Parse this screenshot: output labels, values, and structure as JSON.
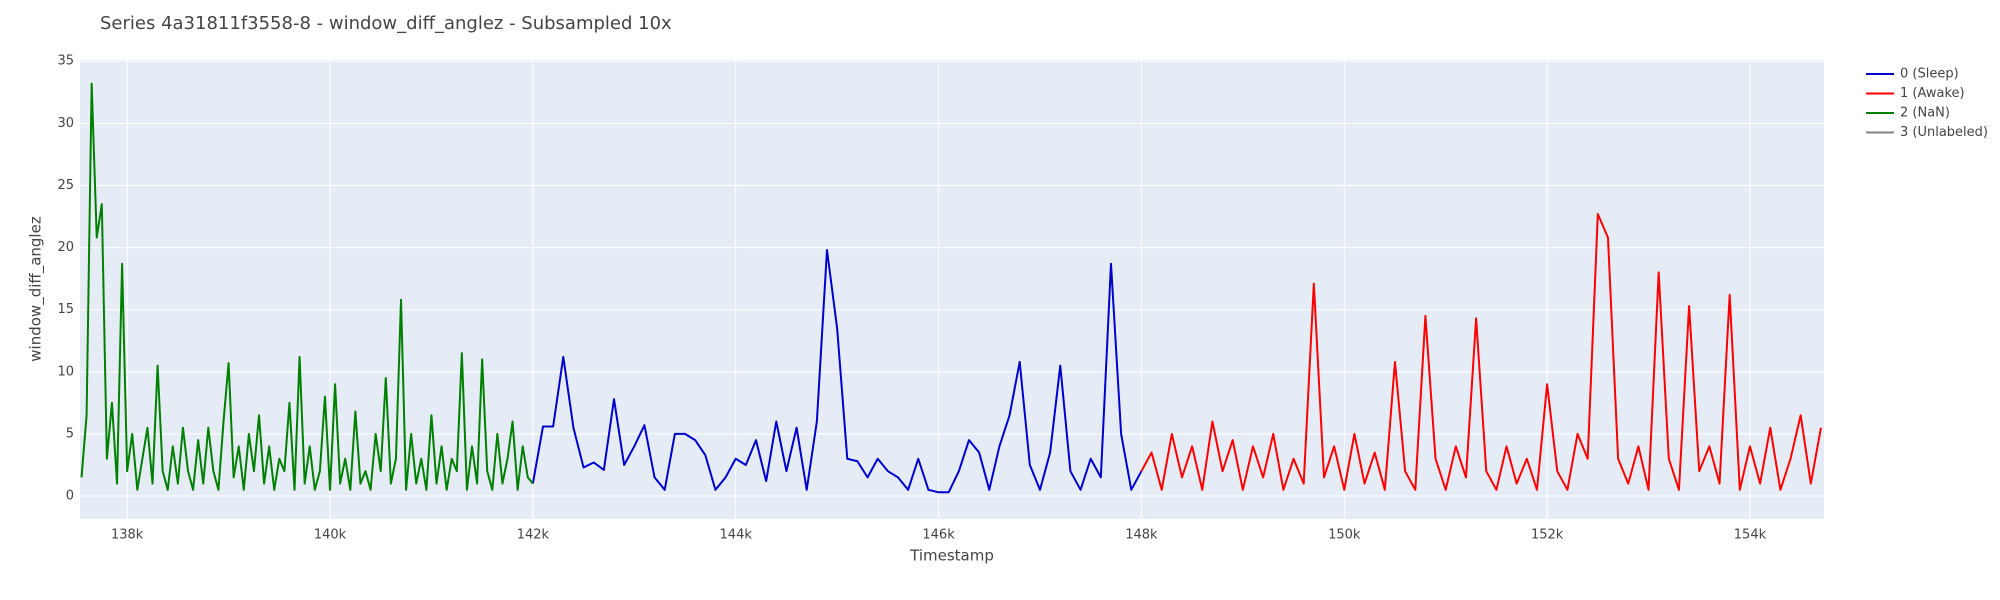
{
  "chart_data": {
    "type": "line",
    "title": "Series 4a31811f3558-8 - window_diff_anglez - Subsampled 10x",
    "x_label": "Timestamp",
    "y_label": "window_diff_anglez",
    "xlim": [
      137535,
      154730
    ],
    "ylim": [
      -1.85,
      35.1
    ],
    "xticks": [
      {
        "value": 138000,
        "label": "138k"
      },
      {
        "value": 140000,
        "label": "140k"
      },
      {
        "value": 142000,
        "label": "142k"
      },
      {
        "value": 144000,
        "label": "144k"
      },
      {
        "value": 146000,
        "label": "146k"
      },
      {
        "value": 148000,
        "label": "148k"
      },
      {
        "value": 150000,
        "label": "150k"
      },
      {
        "value": 152000,
        "label": "152k"
      },
      {
        "value": 154000,
        "label": "154k"
      }
    ],
    "yticks": [
      0,
      5,
      10,
      15,
      20,
      25,
      30,
      35
    ],
    "grid": true,
    "legend": "right",
    "series": [
      {
        "name": "0 (Sleep)",
        "color": "#0000cd",
        "x": [
          142000,
          142100,
          142200,
          142300,
          142400,
          142500,
          142600,
          142700,
          142800,
          142900,
          143000,
          143100,
          143200,
          143300,
          143400,
          143500,
          143600,
          143700,
          143800,
          143900,
          144000,
          144100,
          144200,
          144300,
          144400,
          144500,
          144600,
          144700,
          144800,
          144900,
          145000,
          145100,
          145200,
          145300,
          145400,
          145500,
          145600,
          145700,
          145800,
          145900,
          146000,
          146100,
          146200,
          146300,
          146400,
          146500,
          146600,
          146700,
          146800,
          146900,
          147000,
          147100,
          147200,
          147300,
          147400,
          147500,
          147600,
          147700,
          147800,
          147900,
          148000
        ],
        "values": [
          1,
          5.6,
          5.6,
          11.2,
          5.5,
          2.3,
          2.7,
          2.1,
          7.8,
          2.5,
          4,
          5.7,
          1.5,
          0.5,
          5,
          5,
          4.5,
          3.3,
          0.5,
          1.5,
          3,
          2.5,
          4.5,
          1.2,
          6,
          2,
          5.5,
          0.5,
          6,
          19.8,
          13.5,
          3,
          2.8,
          1.5,
          3,
          2,
          1.5,
          0.5,
          3,
          0.5,
          0.3,
          0.3,
          2,
          4.5,
          3.5,
          0.5,
          4,
          6.5,
          10.8,
          2.5,
          0.5,
          3.5,
          10.5,
          2,
          0.5,
          3,
          1.5,
          18.7,
          5,
          0.5,
          2
        ]
      },
      {
        "name": "1 (Awake)",
        "color": "#ff0000",
        "x": [
          148000,
          148100,
          148200,
          148300,
          148400,
          148500,
          148600,
          148700,
          148800,
          148900,
          149000,
          149100,
          149200,
          149300,
          149400,
          149500,
          149600,
          149700,
          149800,
          149900,
          150000,
          150100,
          150200,
          150300,
          150400,
          150500,
          150600,
          150700,
          150800,
          150900,
          151000,
          151100,
          151200,
          151300,
          151400,
          151500,
          151600,
          151700,
          151800,
          151900,
          152000,
          152100,
          152200,
          152300,
          152400,
          152500,
          152600,
          152700,
          152800,
          152900,
          153000,
          153100,
          153200,
          153300,
          153400,
          153500,
          153600,
          153700,
          153800,
          153900,
          154000,
          154100,
          154200,
          154300,
          154400,
          154500,
          154600,
          154700
        ],
        "values": [
          2,
          3.5,
          0.5,
          5,
          1.5,
          4,
          0.5,
          6,
          2,
          4.5,
          0.5,
          4,
          1.5,
          5,
          0.5,
          3,
          1,
          17.1,
          1.5,
          4,
          0.5,
          5,
          1,
          3.5,
          0.5,
          10.8,
          2,
          0.5,
          14.5,
          3,
          0.5,
          4,
          1.5,
          14.3,
          2,
          0.5,
          4,
          1,
          3,
          0.5,
          9,
          2,
          0.5,
          5,
          3,
          22.7,
          20.8,
          3,
          1,
          4,
          0.5,
          18,
          3,
          0.5,
          15.3,
          2,
          4,
          1,
          16.2,
          0.5,
          4,
          1,
          5.5,
          0.5,
          3,
          6.5,
          1,
          5.5
        ]
      },
      {
        "name": "2 (NaN)",
        "color": "#008000",
        "x": [
          137550,
          137600,
          137650,
          137700,
          137750,
          137800,
          137850,
          137900,
          137950,
          138000,
          138050,
          138100,
          138150,
          138200,
          138250,
          138300,
          138350,
          138400,
          138450,
          138500,
          138550,
          138600,
          138650,
          138700,
          138750,
          138800,
          138850,
          138900,
          138950,
          139000,
          139050,
          139100,
          139150,
          139200,
          139250,
          139300,
          139350,
          139400,
          139450,
          139500,
          139550,
          139600,
          139650,
          139700,
          139750,
          139800,
          139850,
          139900,
          139950,
          140000,
          140050,
          140100,
          140150,
          140200,
          140250,
          140300,
          140350,
          140400,
          140450,
          140500,
          140550,
          140600,
          140650,
          140700,
          140750,
          140800,
          140850,
          140900,
          140950,
          141000,
          141050,
          141100,
          141150,
          141200,
          141250,
          141300,
          141350,
          141400,
          141450,
          141500,
          141550,
          141600,
          141650,
          141700,
          141750,
          141800,
          141850,
          141900,
          141950,
          142000
        ],
        "values": [
          1.5,
          6.5,
          33.2,
          20.8,
          23.5,
          3,
          7.5,
          1,
          18.7,
          2,
          5,
          0.5,
          3,
          5.5,
          1,
          10.5,
          2,
          0.5,
          4,
          1,
          5.5,
          2,
          0.5,
          4.5,
          1,
          5.5,
          2,
          0.5,
          6,
          10.7,
          1.5,
          4,
          0.5,
          5,
          2,
          6.5,
          1,
          4,
          0.5,
          3,
          2,
          7.5,
          0.5,
          11.2,
          1,
          4,
          0.5,
          2,
          8,
          0.5,
          9,
          1,
          3,
          0.5,
          6.8,
          1,
          2,
          0.5,
          5,
          2,
          9.5,
          1,
          3,
          15.8,
          0.5,
          5,
          1,
          3,
          0.5,
          6.5,
          1,
          4,
          0.5,
          3,
          2,
          11.5,
          0.5,
          4,
          1,
          11,
          2,
          0.5,
          5,
          1,
          3,
          6,
          0.5,
          4,
          1.5,
          1
        ]
      },
      {
        "name": "3 (Unlabeled)",
        "color": "#808080",
        "x": [],
        "values": []
      }
    ]
  }
}
